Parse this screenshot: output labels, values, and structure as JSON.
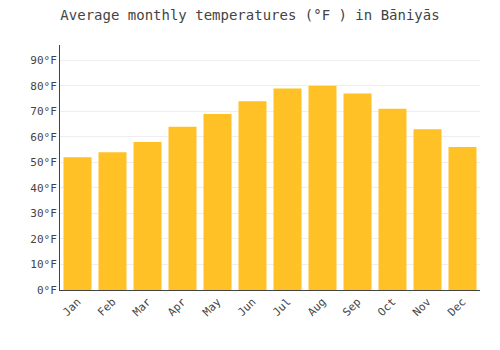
{
  "chart_data": {
    "type": "bar",
    "title": "Average monthly temperatures (°F ) in Bāniyās",
    "categories": [
      "Jan",
      "Feb",
      "Mar",
      "Apr",
      "May",
      "Jun",
      "Jul",
      "Aug",
      "Sep",
      "Oct",
      "Nov",
      "Dec"
    ],
    "values": [
      52,
      54,
      58,
      64,
      69,
      74,
      79,
      80,
      77,
      71,
      63,
      56
    ],
    "color": "#FFC125",
    "ylim": [
      0,
      96
    ],
    "yticks": [
      {
        "value": 0,
        "label": "0°F"
      },
      {
        "value": 10,
        "label": "10°F"
      },
      {
        "value": 20,
        "label": "20°F"
      },
      {
        "value": 30,
        "label": "30°F"
      },
      {
        "value": 40,
        "label": "40°F"
      },
      {
        "value": 50,
        "label": "50°F"
      },
      {
        "value": 60,
        "label": "60°F"
      },
      {
        "value": 70,
        "label": "70°F"
      },
      {
        "value": 80,
        "label": "80°F"
      },
      {
        "value": 90,
        "label": "90°F"
      }
    ],
    "grid": true
  }
}
